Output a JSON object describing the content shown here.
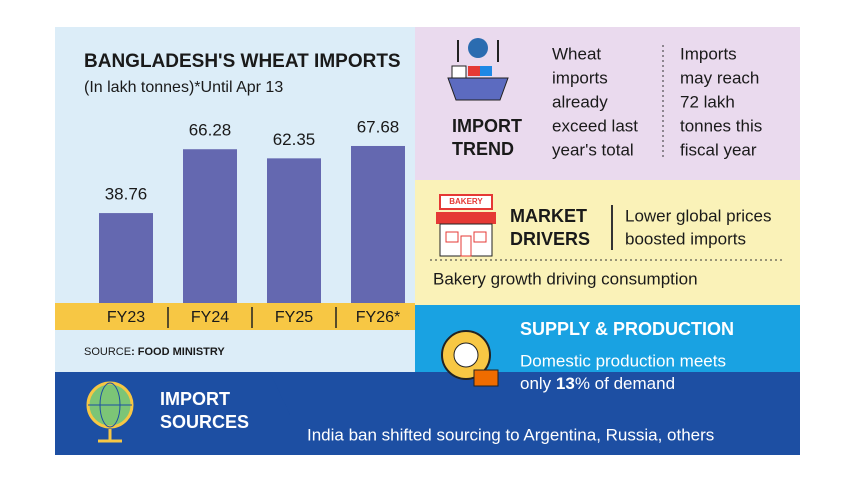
{
  "chart_data": {
    "type": "bar",
    "title": "BANGLADESH'S WHEAT IMPORTS",
    "subtitle": "(In lakh tonnes)*Until Apr 13",
    "categories": [
      "FY23",
      "FY24",
      "FY25",
      "FY26*"
    ],
    "values": [
      38.76,
      66.28,
      62.35,
      67.68
    ],
    "color": "#6468b0"
  },
  "source": {
    "label": "SOURCE",
    "text": ": FOOD MINISTRY"
  },
  "import_trend": {
    "title": [
      "IMPORT",
      "TREND"
    ],
    "col1": [
      "Wheat",
      "imports",
      "already",
      "exceed last",
      "year's total"
    ],
    "col2": [
      "Imports",
      "may reach",
      "72 lakh",
      "tonnes this",
      "fiscal year"
    ]
  },
  "market_drivers": {
    "title": [
      "MARKET",
      "DRIVERS"
    ],
    "icon_label": "BAKERY",
    "text": [
      "Lower global prices",
      "boosted imports"
    ],
    "note": "Bakery growth driving consumption"
  },
  "supply": {
    "title": "SUPPLY & PRODUCTION",
    "line1": "Domestic production meets",
    "prefix": "only ",
    "percent": 13,
    "suffix": "% of demand"
  },
  "import_sources": {
    "title": [
      "IMPORT",
      "SOURCES"
    ],
    "text": "India ban shifted sourcing to Argentina, Russia, others"
  }
}
